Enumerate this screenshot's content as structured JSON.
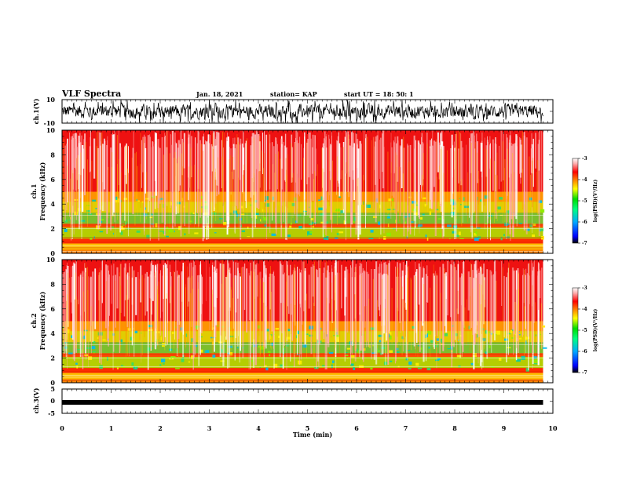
{
  "header": {
    "title": "VLF Spectra",
    "date": "Jan. 18, 2021",
    "station": "station= KAP",
    "start": "start  UT  =   18: 50: 1"
  },
  "colors": {
    "colormap": [
      "#000000",
      "#0000ff",
      "#00aaff",
      "#00ff80",
      "#00dd00",
      "#ffff00",
      "#ff8800",
      "#ff0000",
      "#ffb0b0",
      "#ffffff"
    ],
    "spec_base": "#ee1111",
    "spec_light": "#ffaaaa",
    "waveform": "#000000"
  },
  "chart_data": [
    {
      "type": "line",
      "id": "ch1-waveform",
      "ylabel": "ch.1(V)",
      "ylim": [
        -10,
        10
      ],
      "ytick_labels": [
        "10",
        "-10"
      ],
      "x_range_min": [
        0,
        9.8
      ],
      "description_signal": "noisy waveform fluctuating roughly between -8 and 8 V"
    },
    {
      "type": "heatmap",
      "id": "ch1-spectrogram",
      "ylabel_channel": "ch.1",
      "ylabel": "Frequency  (kHz)",
      "ylim": [
        0,
        10
      ],
      "ytick_labels": [
        "0",
        "2",
        "4",
        "6",
        "8",
        "10"
      ],
      "x_range_min": [
        0,
        9.8
      ],
      "colorbar": {
        "label": "log(PSD)(V²/Hz)",
        "range": [
          -7,
          -3
        ],
        "tick_labels": [
          "-3",
          "-4",
          "-5",
          "-6",
          "-7"
        ]
      }
    },
    {
      "type": "heatmap",
      "id": "ch2-spectrogram",
      "ylabel_channel": "ch.2",
      "ylabel": "Frequency  (kHz)",
      "ylim": [
        0,
        10
      ],
      "ytick_labels": [
        "0",
        "2",
        "4",
        "6",
        "8",
        "10"
      ],
      "x_range_min": [
        0,
        9.8
      ],
      "colorbar": {
        "label": "log(PSD)(V²/Hz)",
        "range": [
          -7,
          -3
        ],
        "tick_labels": [
          "-3",
          "-4",
          "-5",
          "-6",
          "-7"
        ]
      }
    },
    {
      "type": "line",
      "id": "ch3-waveform",
      "ylabel": "ch.3(V)",
      "ylim": [
        -5,
        5
      ],
      "ytick_labels": [
        "5",
        "0",
        "-5"
      ],
      "x_range_min": [
        0,
        9.8
      ],
      "level": -0.5
    }
  ],
  "xaxis": {
    "label": "Time  (min)",
    "range": [
      0,
      10
    ],
    "tick_labels": [
      "0",
      "1",
      "2",
      "3",
      "4",
      "5",
      "6",
      "7",
      "8",
      "9",
      "10"
    ]
  }
}
